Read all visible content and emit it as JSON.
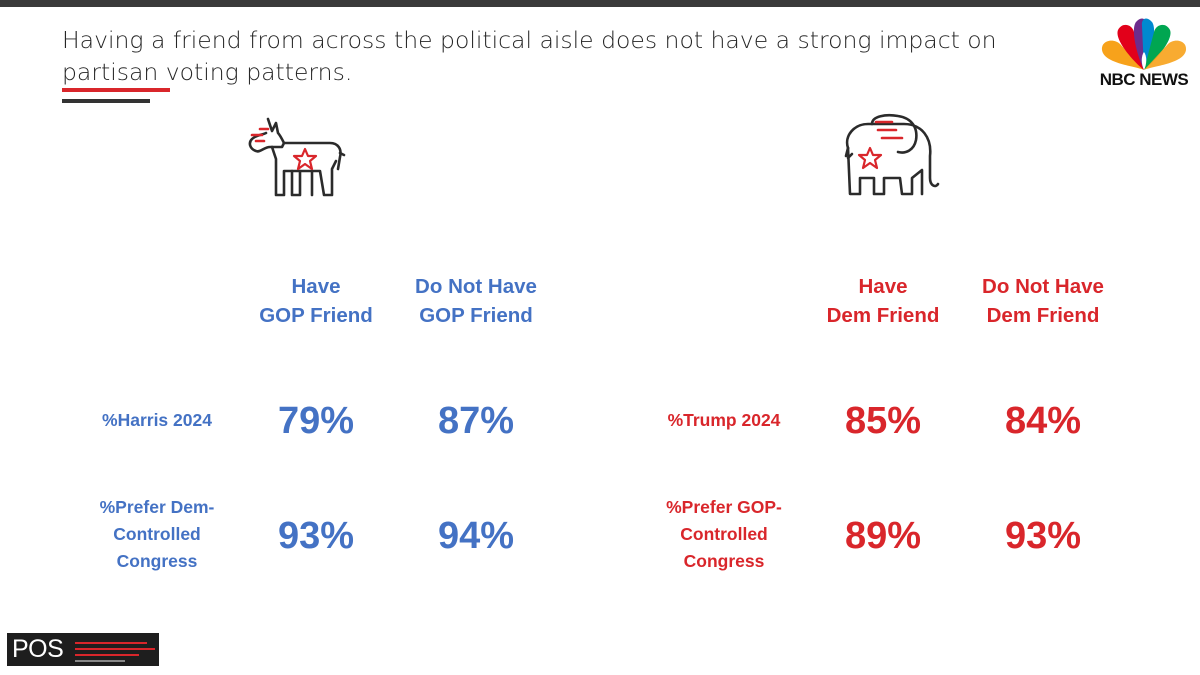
{
  "slide": {
    "title": "Having a friend from across the political aisle does not have a strong impact on partisan voting patterns."
  },
  "logos": {
    "nbc_text": "NBC NEWS",
    "pos_text": "POS"
  },
  "colors": {
    "democrat_blue": "#4472c4",
    "republican_red": "#d9262b",
    "title_text": "#262626"
  },
  "icons": {
    "democrat": "donkey-icon",
    "republican": "elephant-icon"
  },
  "democrats": {
    "columns": [
      {
        "line1": "Have",
        "line2": "GOP Friend"
      },
      {
        "line1": "Do Not Have",
        "line2": "GOP Friend"
      }
    ],
    "rows": [
      {
        "label_lines": [
          "%Harris 2024"
        ],
        "values": [
          "79%",
          "87%"
        ]
      },
      {
        "label_lines": [
          "%Prefer Dem-",
          "Controlled",
          "Congress"
        ],
        "values": [
          "93%",
          "94%"
        ]
      }
    ]
  },
  "republicans": {
    "columns": [
      {
        "line1": "Have",
        "line2": "Dem Friend"
      },
      {
        "line1": "Do Not Have",
        "line2": "Dem Friend"
      }
    ],
    "rows": [
      {
        "label_lines": [
          "%Trump 2024"
        ],
        "values": [
          "85%",
          "84%"
        ]
      },
      {
        "label_lines": [
          "%Prefer GOP-",
          "Controlled",
          "Congress"
        ],
        "values": [
          "89%",
          "93%"
        ]
      }
    ]
  }
}
